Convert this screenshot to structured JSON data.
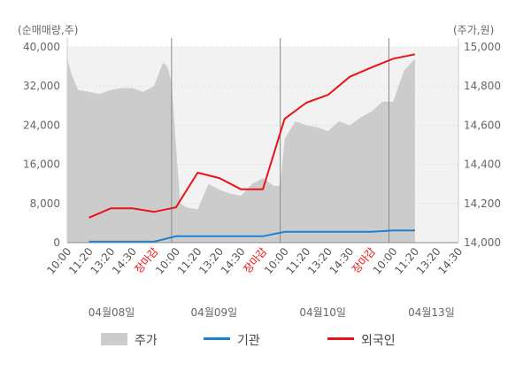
{
  "chart_data": {
    "type": "area+line",
    "left_axis_unit": "(순매매량,주)",
    "right_axis_unit": "(주가,원)",
    "left_ticks": [
      "0",
      "8,000",
      "16,000",
      "24,000",
      "32,000",
      "40,000"
    ],
    "left_tick_values": [
      0,
      8000,
      16000,
      24000,
      32000,
      40000
    ],
    "right_ticks": [
      "14,000",
      "14,200",
      "14,400",
      "14,600",
      "14,800",
      "15,000"
    ],
    "right_tick_values": [
      14000,
      14200,
      14400,
      14600,
      14800,
      15000
    ],
    "ylim_left": [
      0,
      40000
    ],
    "ylim_right": [
      14000,
      15000
    ],
    "x_tick_labels": [
      "10:00",
      "11:20",
      "13:20",
      "14:30",
      "장마감",
      "10:00",
      "11:20",
      "13:20",
      "14:30",
      "장마감",
      "10:00",
      "11:20",
      "13:20",
      "14:30",
      "장마감",
      "10:00",
      "11:20",
      "13:20",
      "14:30"
    ],
    "limit_label": "장마감",
    "dates": [
      "04월08일",
      "04월09일",
      "04월10일",
      "04월13일"
    ],
    "day_separators_at_index": [
      4.8,
      9.8,
      14.8
    ],
    "legend": [
      {
        "label": "주가",
        "color": "#cccccc",
        "kind": "area"
      },
      {
        "label": "기관",
        "color": "#1e7fcf",
        "kind": "line"
      },
      {
        "label": "외국인",
        "color": "#e8131b",
        "kind": "line"
      }
    ],
    "series": [
      {
        "name": "기관",
        "color": "#1e7fcf",
        "axis": "left",
        "points": [
          [
            1,
            200
          ],
          [
            2,
            200
          ],
          [
            3,
            200
          ],
          [
            4,
            200
          ],
          [
            5,
            1300
          ],
          [
            6,
            1300
          ],
          [
            7,
            1300
          ],
          [
            8,
            1300
          ],
          [
            9,
            1300
          ],
          [
            10,
            2200
          ],
          [
            11,
            2200
          ],
          [
            12,
            2200
          ],
          [
            13,
            2200
          ],
          [
            14,
            2200
          ],
          [
            15,
            2500
          ],
          [
            16,
            2500
          ]
        ]
      },
      {
        "name": "외국인",
        "color": "#e8131b",
        "axis": "left",
        "points": [
          [
            1,
            5100
          ],
          [
            2,
            7000
          ],
          [
            3,
            7000
          ],
          [
            4,
            6300
          ],
          [
            5,
            7200
          ],
          [
            6,
            14300
          ],
          [
            7,
            13200
          ],
          [
            8,
            10900
          ],
          [
            9,
            10900
          ],
          [
            10,
            25300
          ],
          [
            11,
            28600
          ],
          [
            12,
            30200
          ],
          [
            13,
            33900
          ],
          [
            14,
            35800
          ],
          [
            15,
            37600
          ],
          [
            16,
            38500
          ]
        ]
      },
      {
        "name": "주가",
        "color": "#cccccc",
        "axis": "right",
        "points": [
          [
            0,
            14940
          ],
          [
            0.2,
            14860
          ],
          [
            0.5,
            14780
          ],
          [
            1,
            14770
          ],
          [
            1.5,
            14760
          ],
          [
            2,
            14780
          ],
          [
            2.5,
            14790
          ],
          [
            3,
            14790
          ],
          [
            3.5,
            14770
          ],
          [
            4,
            14800
          ],
          [
            4.4,
            14920
          ],
          [
            4.6,
            14900
          ],
          [
            4.8,
            14820
          ],
          [
            5,
            14500
          ],
          [
            5.2,
            14200
          ],
          [
            5.5,
            14180
          ],
          [
            6,
            14170
          ],
          [
            6.5,
            14300
          ],
          [
            7,
            14270
          ],
          [
            7.5,
            14250
          ],
          [
            8,
            14240
          ],
          [
            8.5,
            14300
          ],
          [
            9,
            14330
          ],
          [
            9.5,
            14290
          ],
          [
            9.8,
            14290
          ],
          [
            10,
            14530
          ],
          [
            10.5,
            14620
          ],
          [
            11,
            14600
          ],
          [
            11.5,
            14590
          ],
          [
            12,
            14570
          ],
          [
            12.5,
            14620
          ],
          [
            13,
            14600
          ],
          [
            13.5,
            14640
          ],
          [
            14,
            14670
          ],
          [
            14.5,
            14720
          ],
          [
            15,
            14720
          ],
          [
            15.5,
            14880
          ],
          [
            16,
            14940
          ]
        ]
      }
    ]
  }
}
